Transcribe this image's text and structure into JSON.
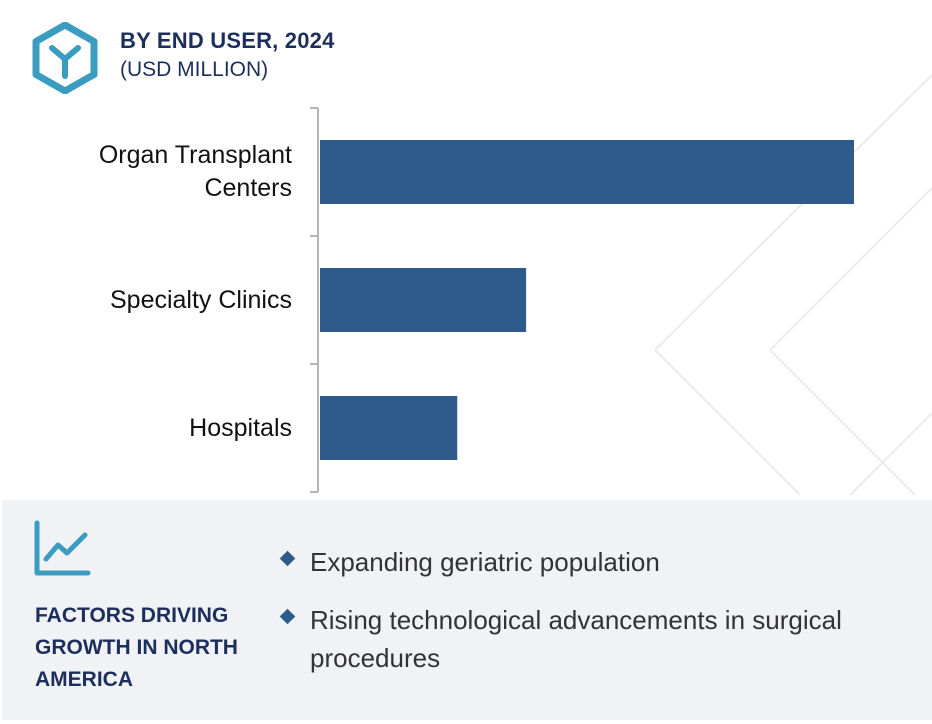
{
  "header": {
    "title": "BY END USER, 2024",
    "subtitle": "(USD MILLION)",
    "logo_icon": "hexagon-y-logo-icon",
    "accent_color": "#3a9cc1"
  },
  "chart_data": {
    "type": "bar",
    "orientation": "horizontal",
    "title": "BY END USER, 2024",
    "subtitle": "(USD MILLION)",
    "categories": [
      "Organ Transplant\nCenters",
      "Specialty Clinics",
      "Hospitals"
    ],
    "values": [
      100,
      38.6,
      25.7
    ],
    "xlim": [
      0,
      100
    ],
    "axis_numbers_shown": false,
    "grid": false,
    "bar_color": "#2d5b8a",
    "xlabel": "",
    "ylabel": ""
  },
  "factors": {
    "icon": "line-chart-icon",
    "title": "FACTORS DRIVING GROWTH IN NORTH AMERICA",
    "items": [
      "Expanding geriatric population",
      "Rising technological advancements in surgical procedures"
    ],
    "bullet_color": "#2d5b8a"
  }
}
